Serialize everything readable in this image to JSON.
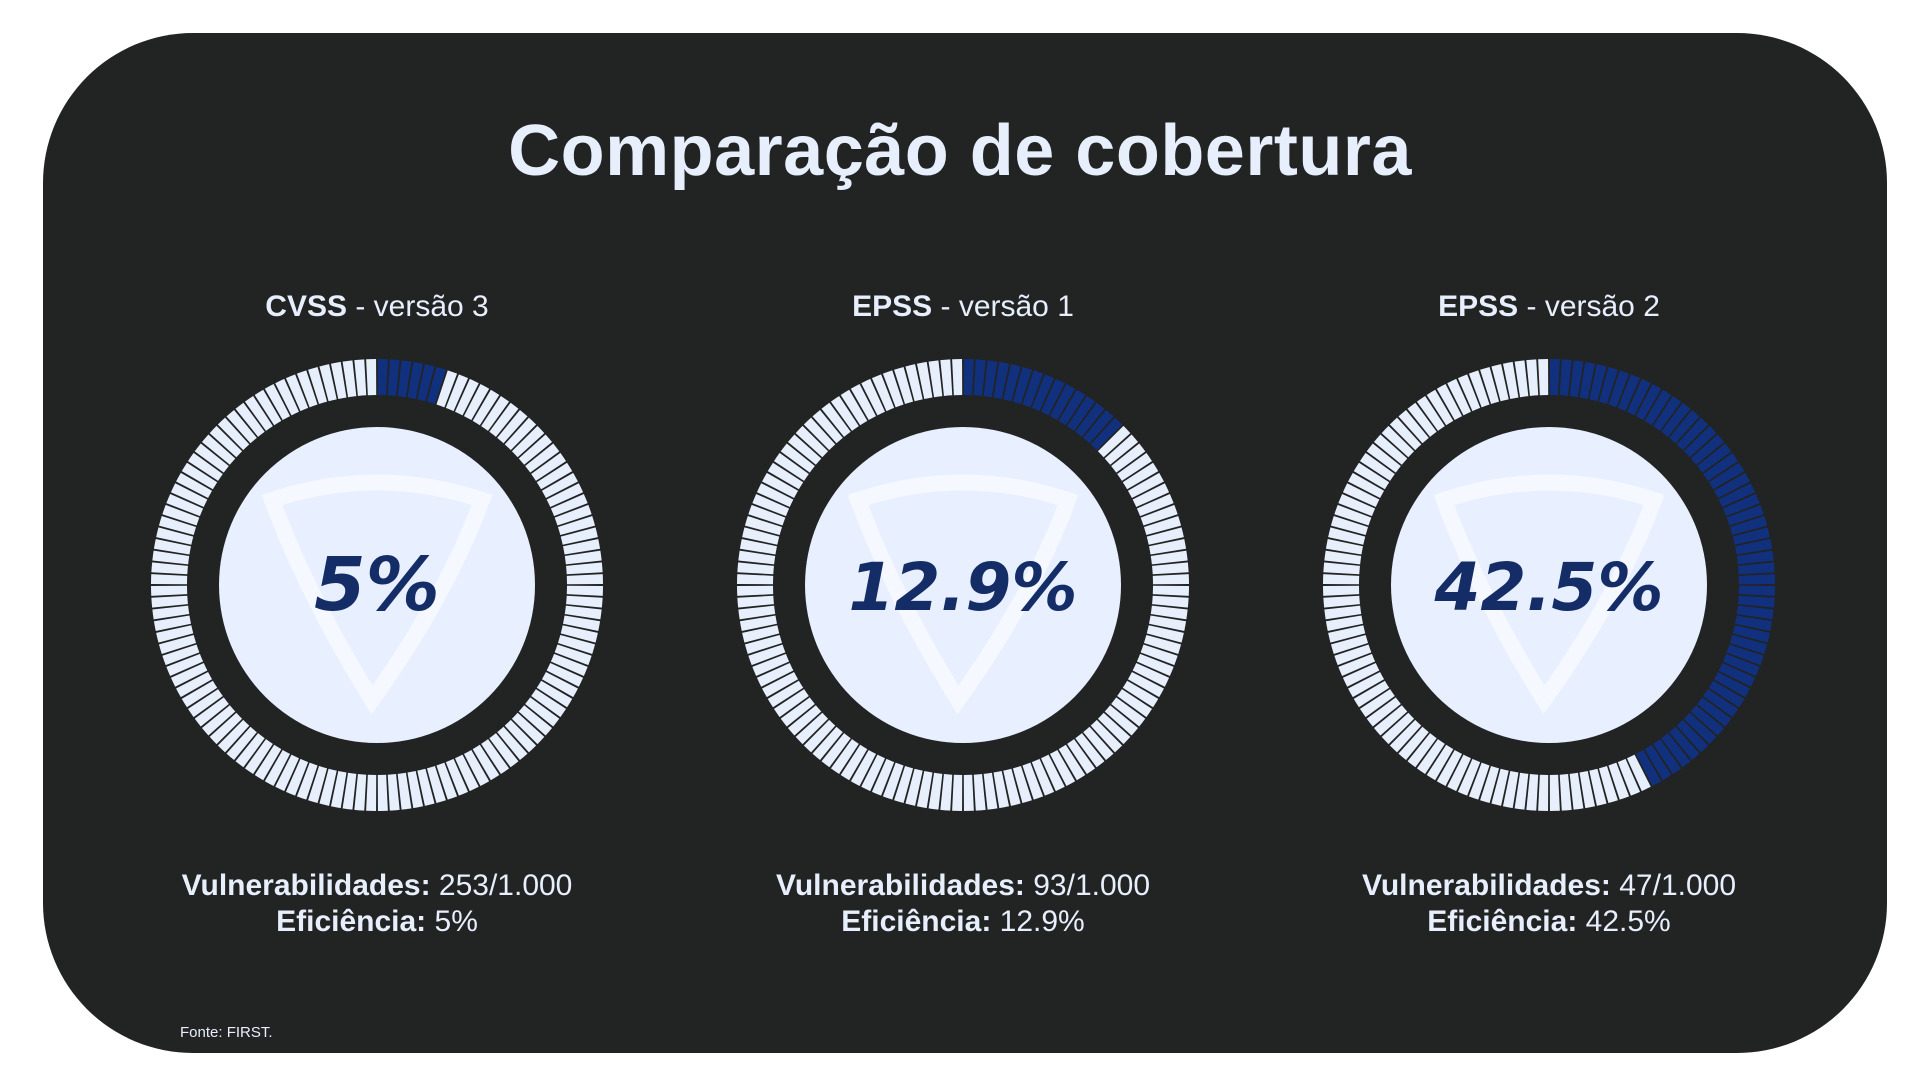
{
  "title": "Comparação de cobertura",
  "colors": {
    "background": "#222323",
    "text": "#e7eefc",
    "segment_empty": "#e7eefc",
    "segment_filled": "#11317f",
    "center_fill": "#e8efff",
    "percent_text": "#142d66"
  },
  "footnote": "Fonte: FIRST.",
  "labels": {
    "vulnerabilities": "Vulnerabilidades:",
    "efficiency": "Eficiência:"
  },
  "chart_data": [
    {
      "type": "gauge",
      "name": "CVSS",
      "version": "- versão 3",
      "center_label": "5%",
      "value_percent": 5,
      "vulnerabilities": "253/1.000",
      "efficiency": "5%"
    },
    {
      "type": "gauge",
      "name": "EPSS",
      "version": "- versão 1",
      "center_label": "12.9%",
      "value_percent": 12.9,
      "vulnerabilities": "93/1.000",
      "efficiency": "12.9%"
    },
    {
      "type": "gauge",
      "name": "EPSS",
      "version": "- versão 2",
      "center_label": "42.5%",
      "value_percent": 42.5,
      "vulnerabilities": "47/1.000",
      "efficiency": "42.5%"
    }
  ]
}
